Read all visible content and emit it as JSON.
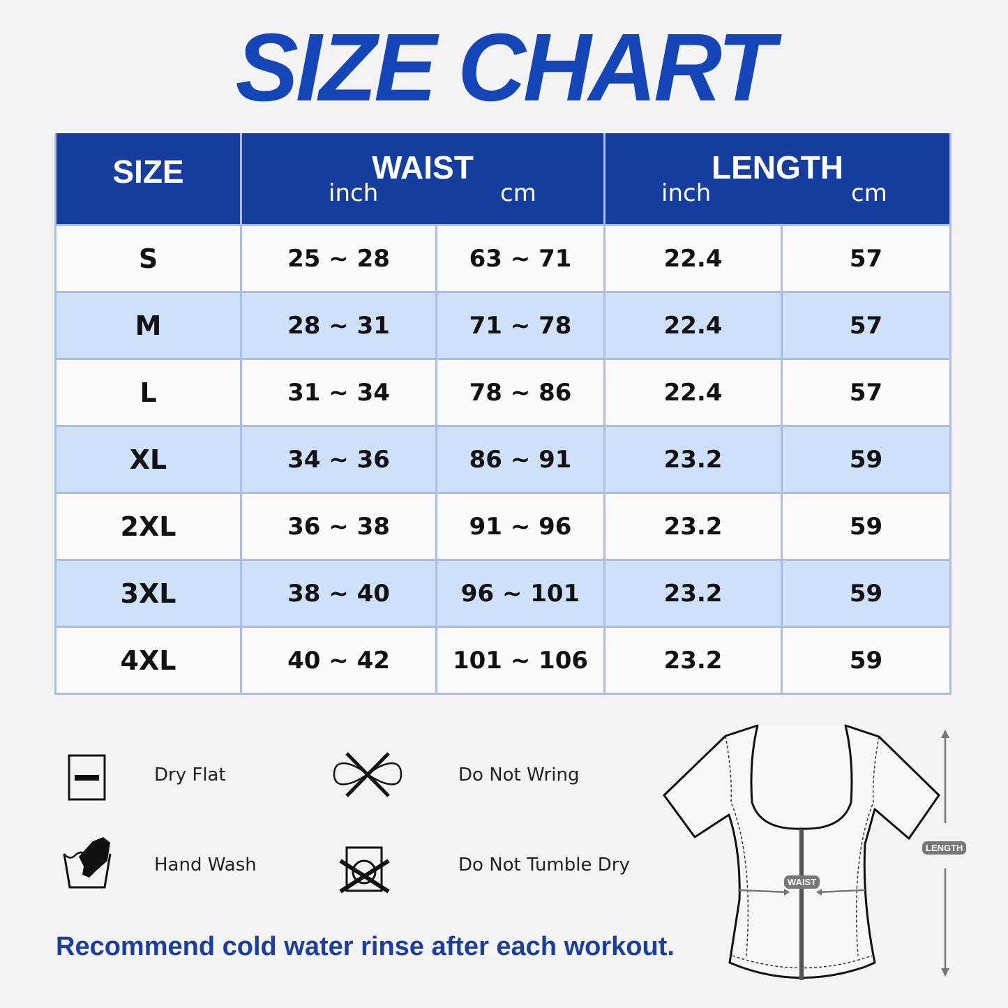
{
  "title": "SIZE CHART",
  "table": {
    "headers": {
      "size": "SIZE",
      "waist": "WAIST",
      "length": "LENGTH",
      "inch": "inch",
      "cm": "cm"
    },
    "rows": [
      {
        "size": "S",
        "waist_inch": "25 ~ 28",
        "waist_cm": "63 ~ 71",
        "length_inch": "22.4",
        "length_cm": "57"
      },
      {
        "size": "M",
        "waist_inch": "28 ~ 31",
        "waist_cm": "71 ~ 78",
        "length_inch": "22.4",
        "length_cm": "57"
      },
      {
        "size": "L",
        "waist_inch": "31 ~ 34",
        "waist_cm": "78 ~ 86",
        "length_inch": "22.4",
        "length_cm": "57"
      },
      {
        "size": "XL",
        "waist_inch": "34 ~ 36",
        "waist_cm": "86 ~ 91",
        "length_inch": "23.2",
        "length_cm": "59"
      },
      {
        "size": "2XL",
        "waist_inch": "36 ~ 38",
        "waist_cm": "91 ~ 96",
        "length_inch": "23.2",
        "length_cm": "59"
      },
      {
        "size": "3XL",
        "waist_inch": "38 ~ 40",
        "waist_cm": "96 ~ 101",
        "length_inch": "23.2",
        "length_cm": "59"
      },
      {
        "size": "4XL",
        "waist_inch": "40 ~ 42",
        "waist_cm": "101 ~ 106",
        "length_inch": "23.2",
        "length_cm": "59"
      }
    ]
  },
  "care": [
    {
      "label": "Dry Flat",
      "icon": "dry-flat-icon"
    },
    {
      "label": "Do Not Wring",
      "icon": "do-not-wring-icon"
    },
    {
      "label": "Hand Wash",
      "icon": "hand-wash-icon"
    },
    {
      "label": "Do Not Tumble Dry",
      "icon": "do-not-tumble-dry-icon"
    }
  ],
  "note": "Recommend cold water rinse after each workout.",
  "diagram": {
    "waist_label": "WAIST",
    "length_label": "LENGTH"
  },
  "colors": {
    "header": "#153e9e",
    "title": "#1446b8",
    "row_alt": "#cfe0fb",
    "note": "#1a3f9f"
  }
}
